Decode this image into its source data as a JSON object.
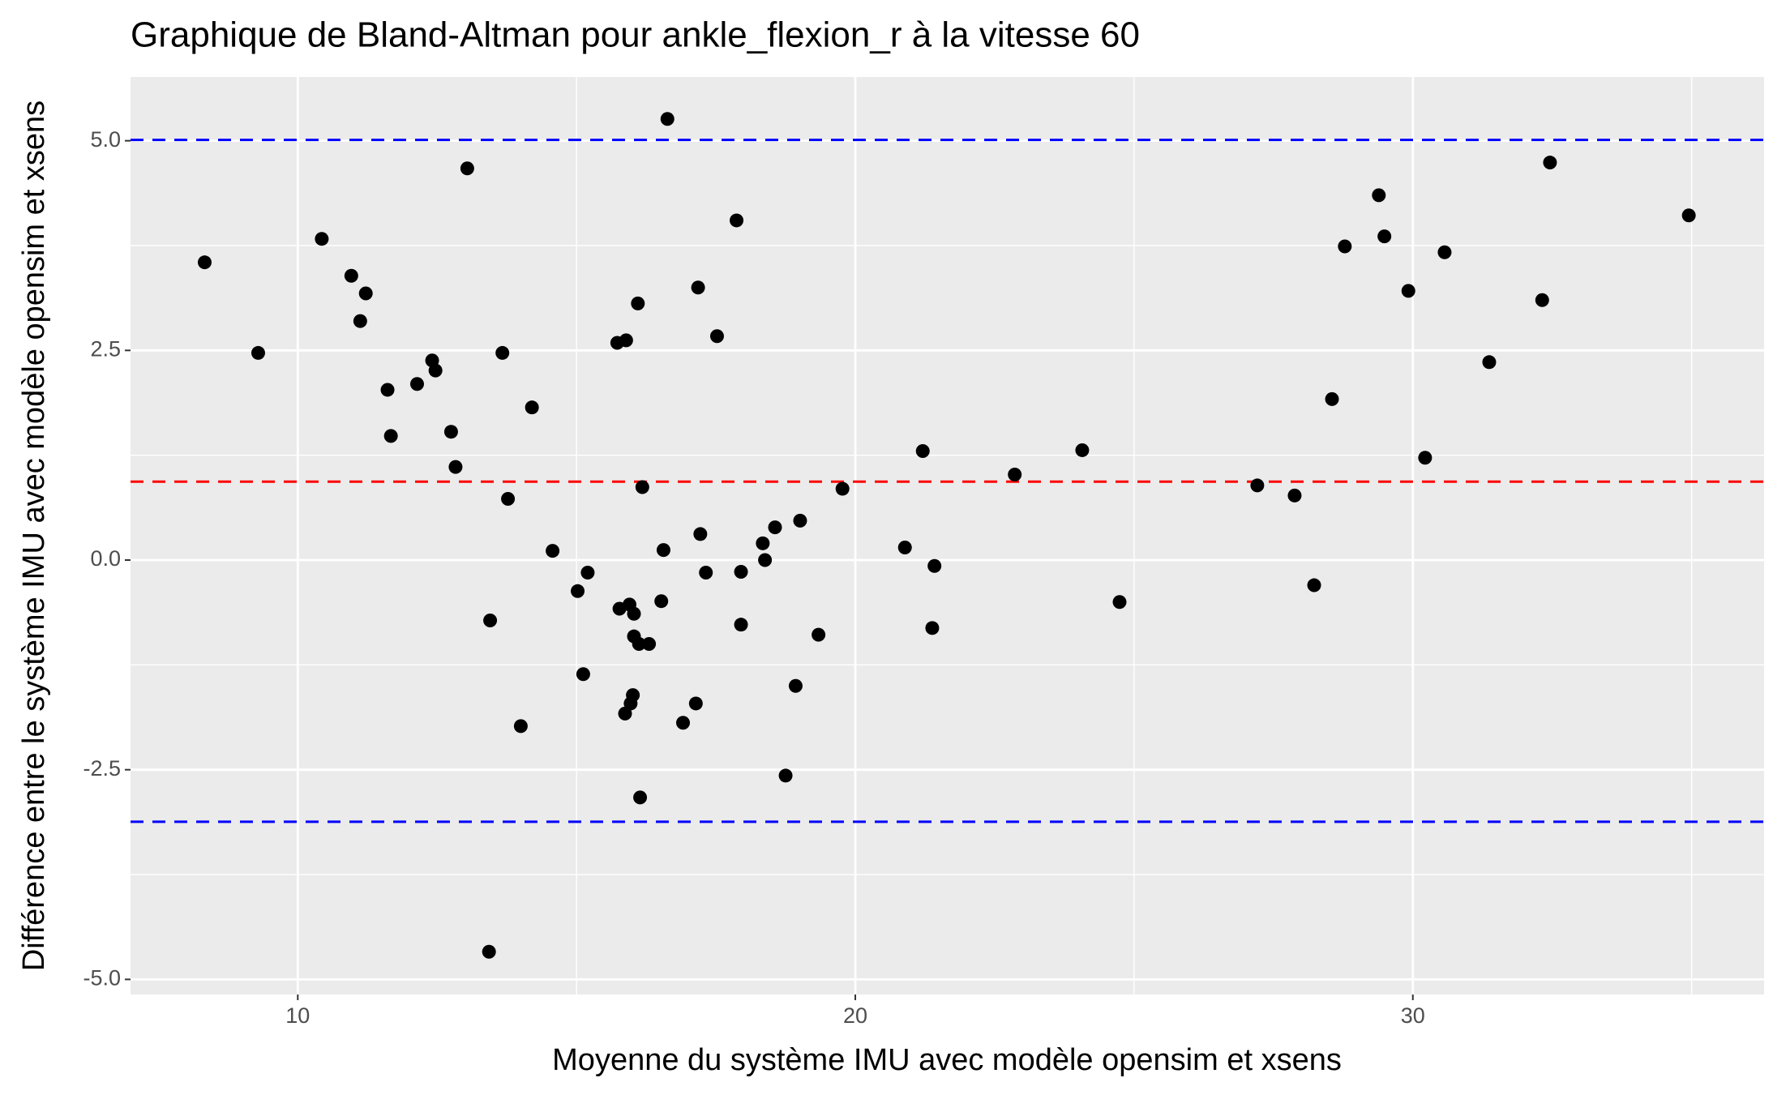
{
  "chart_data": {
    "type": "scatter",
    "title": "Graphique de Bland-Altman pour ankle_flexion_r à la vitesse 60",
    "x_label": "Moyenne du système IMU avec modèle opensim et xsens",
    "y_label": "Différence entre le système IMU avec modèle opensim et xsens",
    "x": [
      8.33,
      9.29,
      10.43,
      10.96,
      11.22,
      11.12,
      11.61,
      11.67,
      12.14,
      12.41,
      12.47,
      12.75,
      12.83,
      13.04,
      13.45,
      13.43,
      13.67,
      13.77,
      14.0,
      14.2,
      14.57,
      15.02,
      15.12,
      15.2,
      15.73,
      15.89,
      15.77,
      15.87,
      15.95,
      16.01,
      15.97,
      16.03,
      16.03,
      16.12,
      16.1,
      16.18,
      16.14,
      16.3,
      16.52,
      16.56,
      16.63,
      16.91,
      17.14,
      17.18,
      17.22,
      17.32,
      17.52,
      17.87,
      17.95,
      17.95,
      18.34,
      18.38,
      18.56,
      18.75,
      18.93,
      19.01,
      19.34,
      19.77,
      20.89,
      21.21,
      21.38,
      21.42,
      22.86,
      24.07,
      24.74,
      27.21,
      27.88,
      28.23,
      28.55,
      28.78,
      29.39,
      29.49,
      29.92,
      30.22,
      30.57,
      31.37,
      32.32,
      32.46,
      34.95
    ],
    "y": [
      3.55,
      2.47,
      3.83,
      3.39,
      3.18,
      2.85,
      2.03,
      1.48,
      2.1,
      2.38,
      2.26,
      1.53,
      1.11,
      4.67,
      -0.72,
      -4.67,
      2.47,
      0.73,
      -1.98,
      1.82,
      0.11,
      -0.37,
      -1.36,
      -0.15,
      2.59,
      2.62,
      -0.58,
      -1.83,
      -0.53,
      -1.61,
      -1.71,
      -0.91,
      -0.64,
      -1.0,
      3.06,
      0.87,
      -2.83,
      -1.0,
      -0.49,
      0.12,
      5.26,
      -1.94,
      -1.71,
      3.25,
      0.31,
      -0.15,
      2.67,
      4.05,
      -0.77,
      -0.14,
      0.2,
      0.0,
      0.39,
      -2.57,
      -1.5,
      0.47,
      -0.89,
      0.85,
      0.15,
      1.3,
      -0.81,
      -0.07,
      1.02,
      1.31,
      -0.5,
      0.89,
      0.77,
      -0.3,
      1.92,
      3.74,
      4.35,
      3.86,
      3.21,
      1.22,
      3.67,
      2.36,
      3.1,
      4.74,
      4.11
    ],
    "point_color": "#000000",
    "reference_lines": [
      {
        "value": 5.01,
        "color": "#0000ff"
      },
      {
        "value": 0.935,
        "color": "#ff0000"
      },
      {
        "value": -3.12,
        "color": "#0000ff"
      }
    ],
    "xlim": [
      7.0,
      36.3
    ],
    "ylim": [
      -5.18,
      5.76
    ],
    "xticks": [
      10,
      20,
      30
    ],
    "yticks": [
      {
        "value": -5,
        "label": "-5.0"
      },
      {
        "value": -2.5,
        "label": "-2.5"
      },
      {
        "value": 0,
        "label": "0.0"
      },
      {
        "value": 2.5,
        "label": "2.5"
      },
      {
        "value": 5,
        "label": "5.0"
      }
    ],
    "grid": true
  }
}
